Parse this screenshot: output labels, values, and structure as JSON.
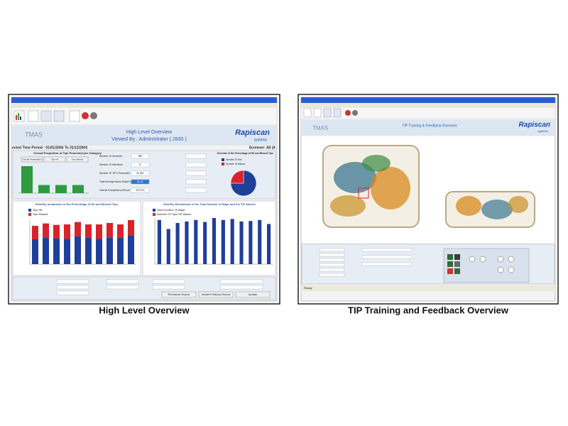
{
  "left_screen": {
    "header_title": "High Level Overview",
    "header_subtitle": "Viewed By : Administrator ( 2830 )",
    "time_period": "ected Time Period : 01/01/2004 To 31/12/2004",
    "screener": "Screener: All (A",
    "logo": "TMAS",
    "brand": "Rapiscan",
    "brand_sub": "systems",
    "category_chart": {
      "title": "Overall Proportion of Tips Presented per Category",
      "buttons": [
        "Overall Presentation",
        "Tips Hit",
        "Tips Missed"
      ],
      "values": [
        40,
        12,
        12,
        12
      ]
    },
    "fields": [
      {
        "label": "Number Of Screener",
        "value": "383"
      },
      {
        "label": "Number Of Machines",
        "value": "8"
      },
      {
        "label": "Number Of TIP's Presented",
        "value": "20,661"
      },
      {
        "label": "Total Average Alarm Rate(%)",
        "value": "52.91"
      },
      {
        "label": "Overall Competency Result",
        "value": "52.91%"
      }
    ],
    "pie_chart": {
      "title": "Overview of the Percentage of Hit and Missed Tips",
      "series": [
        {
          "name": "Number Of Hits",
          "color": "#1f3f9a",
          "value": 75
        },
        {
          "name": "Number Of Misses",
          "color": "#d8232a",
          "value": 25
        }
      ]
    },
    "monthly_hit_chart": {
      "title": "Monthly breakdown of the Percentage of Hit and Missed Tips",
      "series": [
        {
          "name": "Tips Hit",
          "color": "#1f3f9a",
          "values": [
            52,
            55,
            54,
            53,
            58,
            55,
            53,
            56,
            55,
            60
          ]
        },
        {
          "name": "Tips Missed",
          "color": "#d8232a",
          "values": [
            28,
            30,
            28,
            30,
            30,
            28,
            30,
            30,
            28,
            32
          ]
        }
      ]
    },
    "monthly_bags_chart": {
      "title": "Monthly Breakdown of the Total Number of Bags and the TIP Alarms",
      "series": [
        {
          "name": "Total Number Of Bags",
          "color": "#1f3f9a",
          "values": [
            88,
            70,
            82,
            85,
            88,
            84,
            92,
            88,
            90,
            85,
            86,
            88,
            80
          ]
        },
        {
          "name": "Number Of Tips/TIP alarms",
          "color": "#d8232a"
        }
      ]
    },
    "buttons": [
      "Periodical Report",
      "Incident History Report",
      "Update"
    ]
  },
  "right_screen": {
    "logo": "TMAS",
    "header_title": "TIP Training & Feedback Overview",
    "brand": "Rapiscan",
    "brand_sub": "systems",
    "status": "Ready"
  },
  "captions": [
    "High Level Overview",
    "TIP Training and Feedback Overview"
  ]
}
